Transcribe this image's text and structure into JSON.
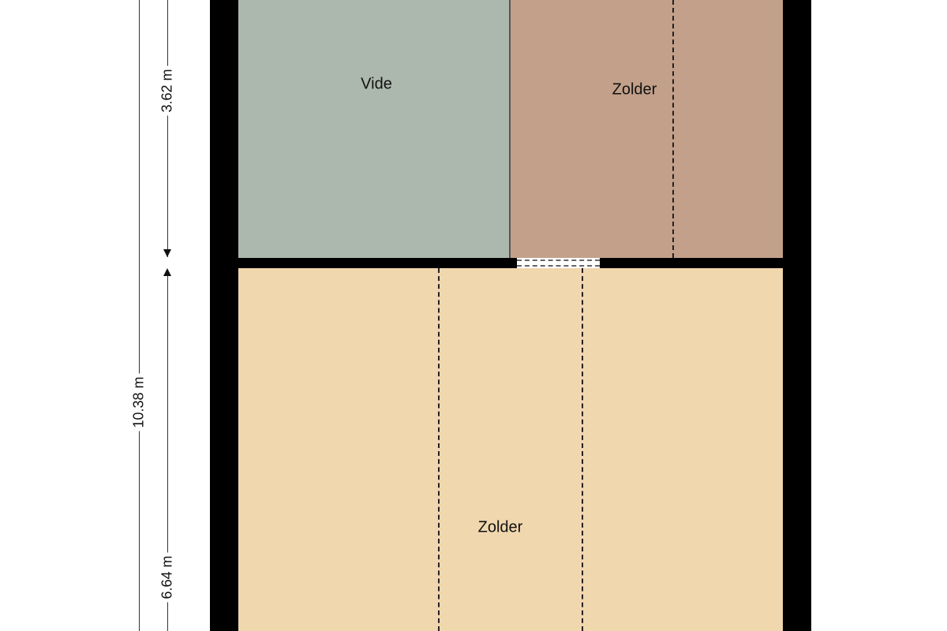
{
  "rooms": {
    "vide": {
      "label": "Vide",
      "color": "#acb8ad"
    },
    "zolder_top": {
      "label": "Zolder",
      "color": "#c2a08a"
    },
    "zolder_bottom": {
      "label": "Zolder",
      "color": "#f0d7ae"
    }
  },
  "dimensions": {
    "total": "10.38 m",
    "upper": "3.62 m",
    "lower": "6.64 m"
  },
  "colors": {
    "wall": "#000000",
    "background": "#ffffff"
  }
}
